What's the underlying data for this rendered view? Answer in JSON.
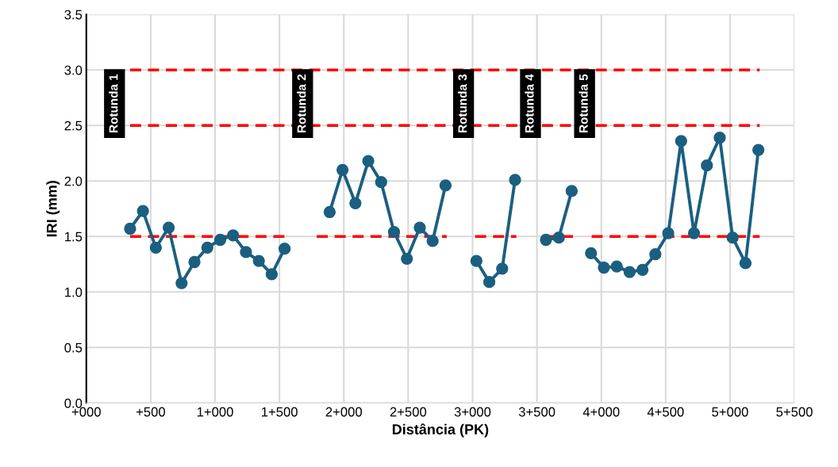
{
  "chart_data": {
    "type": "line",
    "xlabel": "Distância (PK)",
    "ylabel": "IRI (mm)",
    "xlim": [
      0,
      5500
    ],
    "ylim": [
      0,
      3.5
    ],
    "xticks": [
      {
        "value": 0,
        "label": "+000"
      },
      {
        "value": 500,
        "label": "+500"
      },
      {
        "value": 1000,
        "label": "1+000"
      },
      {
        "value": 1500,
        "label": "1+500"
      },
      {
        "value": 2000,
        "label": "2+000"
      },
      {
        "value": 2500,
        "label": "2+500"
      },
      {
        "value": 3000,
        "label": "3+000"
      },
      {
        "value": 3500,
        "label": "3+500"
      },
      {
        "value": 4000,
        "label": "4+000"
      },
      {
        "value": 4500,
        "label": "4+500"
      },
      {
        "value": 5000,
        "label": "5+000"
      },
      {
        "value": 5500,
        "label": "5+500"
      }
    ],
    "yticks": [
      {
        "value": 0,
        "label": "0.0"
      },
      {
        "value": 0.5,
        "label": "0.5"
      },
      {
        "value": 1,
        "label": "1.0"
      },
      {
        "value": 1.5,
        "label": "1.5"
      },
      {
        "value": 2,
        "label": "2.0"
      },
      {
        "value": 2.5,
        "label": "2.5"
      },
      {
        "value": 3,
        "label": "3.0"
      },
      {
        "value": 3.5,
        "label": "3.5"
      }
    ],
    "grid": true,
    "series": [
      {
        "color": "#ff0000",
        "line_style": "dashed",
        "marker": "none",
        "x": [
          340,
          5230
        ],
        "values": [
          3.0,
          3.0
        ]
      },
      {
        "color": "#ff0000",
        "line_style": "dashed",
        "marker": "none",
        "x": [
          340,
          5230
        ],
        "values": [
          2.5,
          2.5
        ]
      },
      {
        "color": "#ff0000",
        "line_style": "dashed",
        "marker": "none",
        "x": [
          340,
          1540,
          1650,
          1790,
          2800,
          2900,
          3020,
          3340,
          3450,
          3570,
          3780,
          3850,
          3925,
          5230
        ],
        "values": [
          1.5,
          1.5,
          null,
          1.5,
          1.5,
          null,
          1.5,
          1.5,
          null,
          1.5,
          1.5,
          null,
          1.5,
          1.5
        ]
      },
      {
        "color": "#1b5f80",
        "line_style": "solid",
        "marker": "circle",
        "x": [
          340,
          440,
          540,
          640,
          740,
          840,
          940,
          1040,
          1140,
          1240,
          1340,
          1440,
          1540,
          1700,
          1890,
          1990,
          2090,
          2190,
          2290,
          2390,
          2490,
          2590,
          2690,
          2790,
          2900,
          3030,
          3130,
          3230,
          3330,
          3450,
          3570,
          3670,
          3770,
          3850,
          3920,
          4020,
          4120,
          4220,
          4320,
          4420,
          4520,
          4620,
          4720,
          4820,
          4920,
          5020,
          5120,
          5220
        ],
        "values": [
          1.57,
          1.73,
          1.4,
          1.58,
          1.08,
          1.27,
          1.4,
          1.47,
          1.51,
          1.36,
          1.28,
          1.16,
          1.39,
          null,
          1.72,
          2.1,
          1.8,
          2.18,
          1.99,
          1.54,
          1.3,
          1.58,
          1.46,
          1.96,
          null,
          1.28,
          1.09,
          1.21,
          2.01,
          null,
          1.47,
          1.49,
          1.91,
          null,
          1.35,
          1.22,
          1.23,
          1.18,
          1.2,
          1.34,
          1.53,
          2.36,
          1.53,
          2.14,
          2.39,
          1.49,
          1.26,
          2.28
        ]
      }
    ],
    "annotations": [
      {
        "text": "Rotunda 1",
        "x": 340,
        "y": 2.5
      },
      {
        "text": "Rotunda 2",
        "x": 1680,
        "y": 2.5
      },
      {
        "text": "Rotunda 3",
        "x": 2930,
        "y": 2.5
      },
      {
        "text": "Rotunda 4",
        "x": 3450,
        "y": 2.5
      },
      {
        "text": "Rotunda 5",
        "x": 3870,
        "y": 2.5
      }
    ]
  }
}
